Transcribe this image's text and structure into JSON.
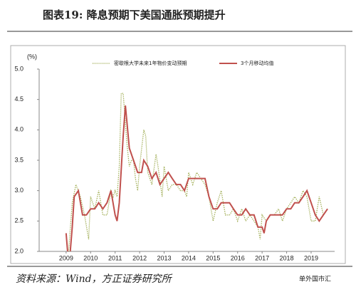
{
  "chart_data": {
    "type": "line",
    "title": "图表19:        降息预期下美国通胀预期提升",
    "y_label": "(%)",
    "source": "资料来源：Wind，方正证券研究所",
    "watermark": "单外国市汇",
    "xlim": [
      2007.9,
      2019.96
    ],
    "xticks": [
      2009,
      2010,
      2011,
      2012,
      2013,
      2014,
      2015,
      2016,
      2017,
      2018,
      2019
    ],
    "ylim": [
      2,
      5
    ],
    "yticks": [
      {
        "value": 2,
        "label": "2.0"
      },
      2.5,
      {
        "value": 3,
        "label": "3.0"
      },
      3.5,
      {
        "value": 4,
        "label": "4.0"
      },
      4.5,
      {
        "value": 5,
        "label": "5.0"
      }
    ],
    "series": [
      {
        "name": "密歇根大学未来1年物价变动预期",
        "color": "#9aa84a",
        "style": "dotted",
        "x": [
          2009.08,
          2009.25,
          2009.4,
          2009.58,
          2009.75,
          2009.92,
          2010.0,
          2010.17,
          2010.33,
          2010.5,
          2010.67,
          2010.83,
          2010.92,
          2011.0,
          2011.08,
          2011.17,
          2011.25,
          2011.33,
          2011.42,
          2011.5,
          2011.58,
          2011.67,
          2011.75,
          2011.83,
          2011.92,
          2012.0,
          2012.17,
          2012.25,
          2012.33,
          2012.5,
          2012.67,
          2012.75,
          2012.92,
          2013.0,
          2013.17,
          2013.33,
          2013.5,
          2013.67,
          2013.83,
          2013.92,
          2014.0,
          2014.17,
          2014.33,
          2014.5,
          2014.67,
          2014.83,
          2015.0,
          2015.17,
          2015.33,
          2015.5,
          2015.67,
          2015.83,
          2016.0,
          2016.17,
          2016.33,
          2016.5,
          2016.67,
          2016.83,
          2016.92,
          2017.0,
          2017.17,
          2017.33,
          2017.5,
          2017.67,
          2017.83,
          2018.0,
          2018.17,
          2018.33,
          2018.5,
          2018.67,
          2018.83,
          2019.0,
          2019.17,
          2019.33,
          2019.5,
          2019.67
        ],
        "values": [
          1.9,
          2.8,
          3.1,
          2.9,
          2.6,
          2.2,
          2.9,
          2.7,
          3.0,
          2.6,
          2.6,
          3.0,
          2.9,
          3.0,
          2.9,
          3.4,
          4.6,
          4.6,
          4.1,
          3.7,
          3.4,
          3.5,
          3.5,
          3.2,
          3.0,
          3.4,
          4.0,
          3.9,
          3.3,
          3.1,
          3.6,
          3.4,
          2.9,
          3.4,
          3.0,
          3.1,
          3.1,
          3.0,
          3.0,
          2.9,
          3.3,
          3.1,
          3.3,
          3.2,
          3.1,
          2.9,
          2.5,
          2.8,
          3.0,
          2.6,
          2.6,
          2.7,
          2.5,
          2.7,
          2.5,
          2.6,
          2.5,
          2.4,
          2.2,
          2.6,
          2.5,
          2.6,
          2.6,
          2.7,
          2.5,
          2.7,
          2.8,
          2.9,
          2.8,
          3.0,
          2.9,
          2.5,
          2.5,
          2.9,
          2.6,
          2.7
        ]
      },
      {
        "name": "3个月移动均值",
        "color": "#c0504d",
        "style": "solid",
        "x": [
          2009.0,
          2009.08,
          2009.17,
          2009.25,
          2009.33,
          2009.5,
          2009.67,
          2009.83,
          2010.0,
          2010.17,
          2010.33,
          2010.5,
          2010.67,
          2010.83,
          2011.0,
          2011.08,
          2011.17,
          2011.33,
          2011.42,
          2011.58,
          2011.75,
          2011.92,
          2012.08,
          2012.17,
          2012.33,
          2012.5,
          2012.67,
          2012.83,
          2013.0,
          2013.17,
          2013.33,
          2013.5,
          2013.67,
          2013.83,
          2014.0,
          2014.17,
          2014.33,
          2014.5,
          2014.67,
          2014.83,
          2015.0,
          2015.17,
          2015.33,
          2015.5,
          2015.67,
          2015.83,
          2016.0,
          2016.17,
          2016.33,
          2016.5,
          2016.67,
          2016.83,
          2017.0,
          2017.08,
          2017.17,
          2017.33,
          2017.5,
          2017.67,
          2017.83,
          2018.0,
          2018.17,
          2018.33,
          2018.5,
          2018.67,
          2018.83,
          2019.0,
          2019.17,
          2019.33,
          2019.5,
          2019.67
        ],
        "values": [
          2.3,
          1.9,
          2.0,
          2.4,
          2.9,
          3.0,
          2.6,
          2.6,
          2.7,
          2.7,
          2.8,
          2.7,
          2.8,
          3.0,
          2.6,
          2.5,
          2.8,
          3.9,
          4.4,
          3.7,
          3.5,
          3.3,
          3.3,
          3.5,
          3.4,
          3.2,
          3.3,
          3.1,
          3.2,
          3.3,
          3.2,
          3.1,
          3.1,
          3.0,
          3.2,
          3.2,
          3.2,
          3.2,
          3.2,
          2.9,
          2.7,
          2.7,
          2.8,
          2.8,
          2.8,
          2.7,
          2.6,
          2.6,
          2.7,
          2.6,
          2.6,
          2.4,
          2.4,
          2.3,
          2.5,
          2.6,
          2.6,
          2.6,
          2.6,
          2.7,
          2.7,
          2.8,
          2.8,
          2.9,
          3.0,
          2.8,
          2.6,
          2.5,
          2.6,
          2.7
        ]
      }
    ]
  }
}
